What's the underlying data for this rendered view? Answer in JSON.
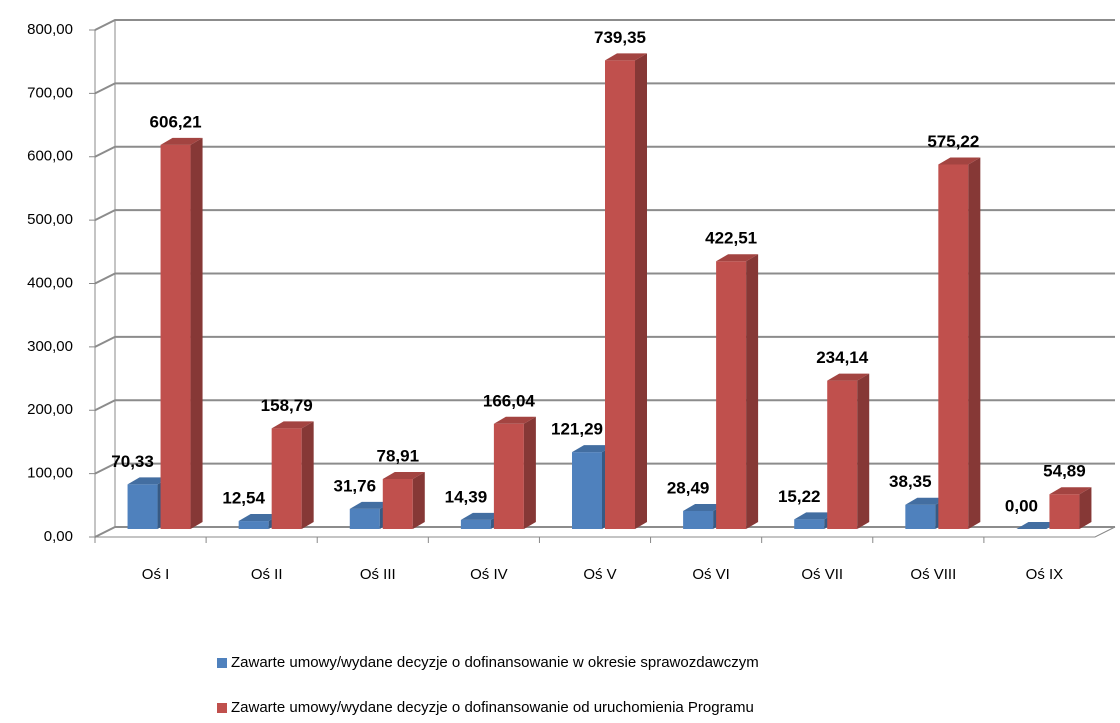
{
  "chart_data": {
    "type": "bar3d",
    "categories": [
      "Oś I",
      "Oś II",
      "Oś III",
      "Oś IV",
      "Oś V",
      "Oś VI",
      "Oś VII",
      "Oś VIII",
      "Oś IX"
    ],
    "series": [
      {
        "name": "Zawarte umowy/wydane decyzje o dofinansowanie w okresie sprawozdawczym",
        "color": "#4f81bd",
        "values": [
          70.33,
          12.54,
          31.76,
          14.39,
          121.29,
          28.49,
          15.22,
          38.35,
          0.0
        ],
        "value_labels": [
          "70,33",
          "12,54",
          "31,76",
          "14,39",
          "121,29",
          "28,49",
          "15,22",
          "38,35",
          "0,00"
        ]
      },
      {
        "name": "Zawarte umowy/wydane decyzje o dofinansowanie od uruchomienia Programu",
        "color": "#c0504d",
        "values": [
          606.21,
          158.79,
          78.91,
          166.04,
          739.35,
          422.51,
          234.14,
          575.22,
          54.89
        ],
        "value_labels": [
          "606,21",
          "158,79",
          "78,91",
          "166,04",
          "739,35",
          "422,51",
          "234,14",
          "575,22",
          "54,89"
        ]
      }
    ],
    "ylim": [
      0,
      800
    ],
    "yticks": [
      {
        "value": 0,
        "label": "0,00"
      },
      {
        "value": 100,
        "label": "100,00"
      },
      {
        "value": 200,
        "label": "200,00"
      },
      {
        "value": 300,
        "label": "300,00"
      },
      {
        "value": 400,
        "label": "400,00"
      },
      {
        "value": 500,
        "label": "500,00"
      },
      {
        "value": 600,
        "label": "600,00"
      },
      {
        "value": 700,
        "label": "700,00"
      },
      {
        "value": 800,
        "label": "800,00"
      }
    ],
    "grid": true,
    "legend": "bottom"
  }
}
